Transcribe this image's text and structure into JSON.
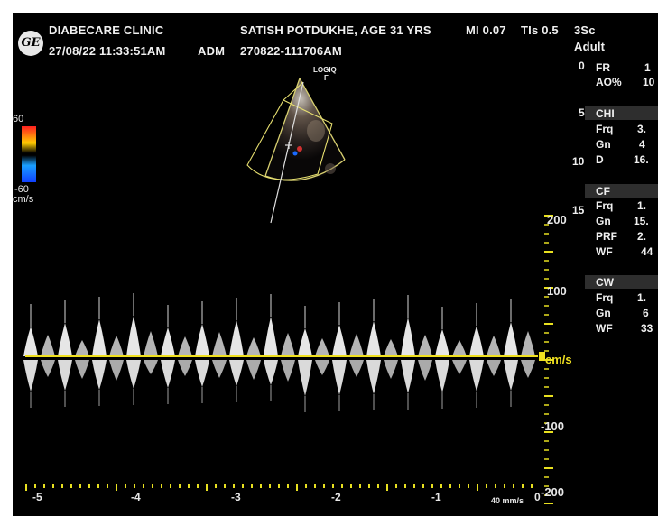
{
  "header": {
    "clinic": "DIABECARE CLINIC",
    "patient": "SATISH POTDUKHE, AGE 31 YRS",
    "mi": "MI 0.07",
    "tis": "TIs 0.5",
    "probe": "3Sc",
    "datetime": "27/08/22 11:33:51AM",
    "operator": "ADM",
    "exam_id": "270822-111706AM",
    "preset": "Adult",
    "logo": "GE"
  },
  "image_brand": "LOGIQ",
  "image_brand_sub": "F",
  "params": {
    "fr_label": "FR",
    "fr_value": "1",
    "ao_label": "AO%",
    "ao_value": "10",
    "chi_label": "CHI",
    "chi_frq_label": "Frq",
    "chi_frq_value": "3.",
    "chi_gn_label": "Gn",
    "chi_gn_value": "4",
    "d_label": "D",
    "d_value": "16.",
    "cf_label": "CF",
    "cf_frq_label": "Frq",
    "cf_frq_value": "1.",
    "cf_gn_label": "Gn",
    "cf_gn_value": "15.",
    "prf_label": "PRF",
    "prf_value": "2.",
    "cf_wf_label": "WF",
    "cf_wf_value": "44",
    "cw_label": "CW",
    "cw_frq_label": "Frq",
    "cw_frq_value": "1.",
    "cw_gn_label": "Gn",
    "cw_gn_value": "6",
    "cw_wf_label": "WF",
    "cw_wf_value": "33"
  },
  "depth_scale": [
    "0",
    "5",
    "10",
    "15"
  ],
  "color_bar": {
    "top": "60",
    "bottom": "-60",
    "unit": "cm/s",
    "colors": [
      "#ff2020",
      "#ffcc00",
      "#000000",
      "#1aa0ff",
      "#1040ff"
    ]
  },
  "doppler": {
    "velocity_labels": [
      "200",
      "100",
      "cm/s",
      "-100",
      "-200"
    ],
    "time_labels": [
      "-5",
      "-4",
      "-3",
      "-2",
      "-1",
      "0"
    ],
    "sweep_speed": "40 mm/s",
    "baseline_color": "#f0e020",
    "scale_color": "#e8e020"
  }
}
